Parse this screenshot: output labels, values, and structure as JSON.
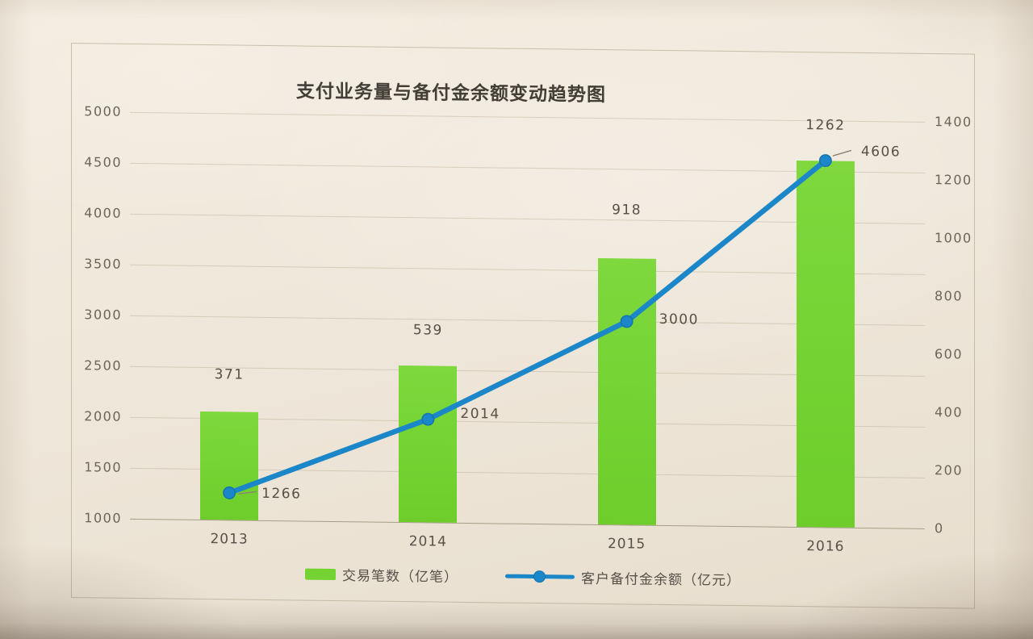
{
  "photo": {
    "paper_color": "#efe8db"
  },
  "chart_data": {
    "type": "bar+line",
    "title": "支付业务量与备付金余额变动趋势图",
    "categories": [
      "2013",
      "2014",
      "2015",
      "2016"
    ],
    "series": [
      {
        "name": "交易笔数（亿笔）",
        "kind": "bar",
        "axis": "right",
        "color": "#74d332",
        "values": [
          371,
          539,
          918,
          1262
        ]
      },
      {
        "name": "客户备付金余额（亿元）",
        "kind": "line",
        "axis": "left",
        "color": "#1b87c9",
        "marker_edge_color": "#1474ad",
        "values": [
          1266,
          2014,
          3000,
          4606
        ]
      }
    ],
    "left_axis": {
      "min": 1000,
      "max": 5000,
      "step": 500,
      "ticks": [
        "5000",
        "4500",
        "4000",
        "3500",
        "3000",
        "2500",
        "2000",
        "1500",
        "1000"
      ]
    },
    "right_axis": {
      "min": 0,
      "max": 1400,
      "step": 200,
      "ticks": [
        "1400",
        "1200",
        "1000",
        "800",
        "600",
        "400",
        "200",
        "0"
      ]
    },
    "grid": true,
    "data_labels": true,
    "legend_position": "bottom"
  }
}
